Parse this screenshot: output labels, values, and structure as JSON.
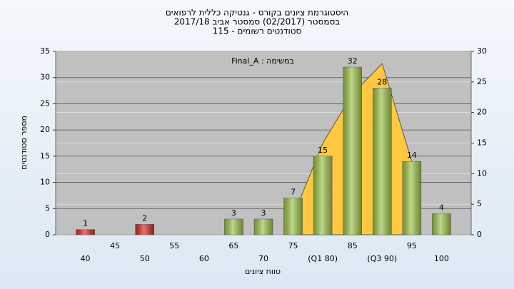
{
  "chart_data": {
    "type": "bar",
    "title": [
      "היסטוגרמת ציונים בקורס - גנטיקה כללית לרפואים",
      "בסמסטר  (02/2017)  סמסטר אביב  2017/18",
      "סטודנטים רשומים - 115"
    ],
    "annotation": "Final_A : במשימה",
    "xlabel": "טווח ציונים",
    "ylabel": "מספר סטודנטים",
    "categories": [
      "40",
      "45",
      "50",
      "55",
      "60",
      "65",
      "70",
      "75",
      "(Q1 80)",
      "85",
      "(Q3 90)",
      "95",
      "100"
    ],
    "values": [
      1,
      null,
      2,
      null,
      null,
      3,
      3,
      7,
      15,
      32,
      28,
      14,
      4
    ],
    "colors": [
      "#d42a2a",
      "#d42a2a",
      "#d42a2a",
      "#d42a2a",
      "#9cc24a",
      "#9cc24a",
      "#9cc24a",
      "#9cc24a",
      "#9cc24a",
      "#9cc24a",
      "#9cc24a",
      "#9cc24a",
      "#9cc24a"
    ],
    "area": {
      "color": "#ffc840",
      "axis": "y2",
      "values": [
        null,
        null,
        null,
        null,
        null,
        null,
        null,
        3,
        15,
        23,
        28,
        12,
        null
      ]
    },
    "ylim": [
      0,
      35
    ],
    "yticks": [
      0,
      5,
      10,
      15,
      20,
      25,
      30,
      35
    ],
    "y2lim": [
      0,
      30
    ],
    "y2ticks": [
      0,
      5,
      10,
      15,
      20,
      25,
      30
    ],
    "grid": true
  }
}
